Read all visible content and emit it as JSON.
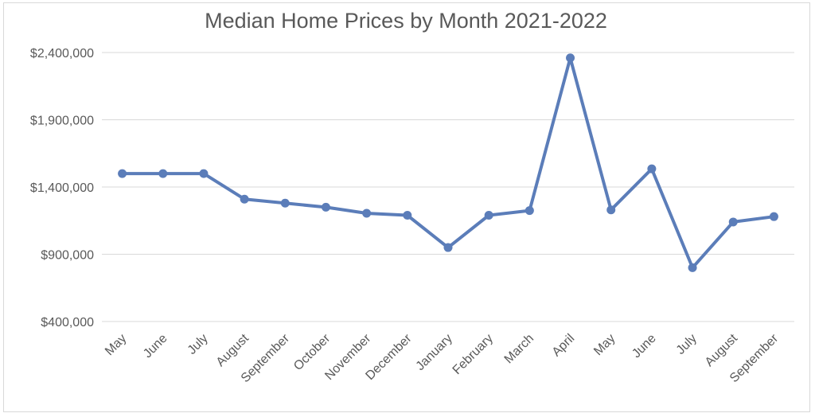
{
  "chart_data": {
    "type": "line",
    "title": "Median Home Prices by Month 2021-2022",
    "xlabel": "",
    "ylabel": "",
    "categories": [
      "May",
      "June",
      "July",
      "August",
      "September",
      "October",
      "November",
      "December",
      "January",
      "February",
      "March",
      "April",
      "May",
      "June",
      "July",
      "August",
      "September"
    ],
    "series": [
      {
        "values": [
          1500000,
          1500000,
          1500000,
          1310000,
          1280000,
          1250000,
          1205000,
          1190000,
          950000,
          1190000,
          1225000,
          2360000,
          1230000,
          1535000,
          800000,
          1140000,
          1180000
        ],
        "color": "#5b7db9"
      }
    ],
    "y_ticks": [
      400000,
      900000,
      1400000,
      1900000,
      2400000
    ],
    "y_tick_labels": [
      "$400,000",
      "$900,000",
      "$1,400,000",
      "$1,900,000",
      "$2,400,000"
    ],
    "ylim": [
      400000,
      2400000
    ],
    "grid": true,
    "legend": "none"
  }
}
